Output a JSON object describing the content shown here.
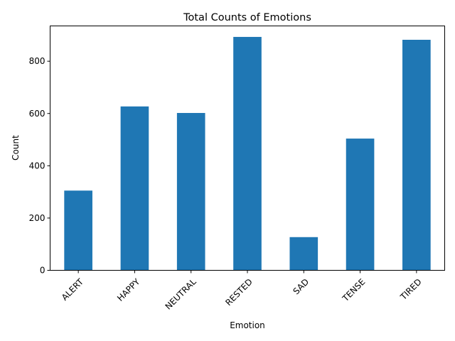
{
  "chart_data": {
    "type": "bar",
    "title": "Total Counts of Emotions",
    "xlabel": "Emotion",
    "ylabel": "Count",
    "categories": [
      "ALERT",
      "HAPPY",
      "NEUTRAL",
      "RESTED",
      "SAD",
      "TENSE",
      "TIRED"
    ],
    "values": [
      305,
      627,
      602,
      893,
      127,
      504,
      882
    ],
    "ylim": [
      0,
      935
    ],
    "yticks": [
      0,
      200,
      400,
      600,
      800
    ],
    "grid": false,
    "legend": "none",
    "bar_color": "#1f77b4",
    "x_tick_rotation_deg": 45
  }
}
